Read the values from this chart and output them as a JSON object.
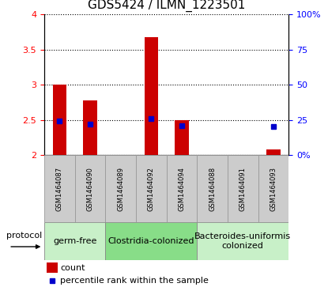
{
  "title": "GDS5424 / ILMN_1223501",
  "samples": [
    "GSM1464087",
    "GSM1464090",
    "GSM1464089",
    "GSM1464092",
    "GSM1464094",
    "GSM1464088",
    "GSM1464091",
    "GSM1464093"
  ],
  "count_values": [
    3.0,
    2.78,
    2.0,
    3.68,
    2.5,
    2.0,
    2.0,
    2.08
  ],
  "percentile_values": [
    24,
    22,
    null,
    26,
    21,
    null,
    null,
    20
  ],
  "groups": [
    {
      "label": "germ-free",
      "indices": [
        0,
        1
      ],
      "color": "#c8f0c8"
    },
    {
      "label": "Clostridia-colonized",
      "indices": [
        2,
        3,
        4
      ],
      "color": "#88dd88"
    },
    {
      "label": "Bacteroides-uniformis\ncolonized",
      "indices": [
        5,
        6,
        7
      ],
      "color": "#c8f0c8"
    }
  ],
  "ylim_left": [
    2.0,
    4.0
  ],
  "ylim_right": [
    0,
    100
  ],
  "yticks_left": [
    2.0,
    2.5,
    3.0,
    3.5,
    4.0
  ],
  "yticks_right": [
    0,
    25,
    50,
    75,
    100
  ],
  "ytick_labels_left": [
    "2",
    "2.5",
    "3",
    "3.5",
    "4"
  ],
  "ytick_labels_right": [
    "0%",
    "25",
    "50",
    "75",
    "100%"
  ],
  "bar_color": "#cc0000",
  "dot_color": "#0000cc",
  "bar_width": 0.45,
  "bar_bottom": 2.0,
  "legend_count_label": "count",
  "legend_percentile_label": "percentile rank within the sample",
  "protocol_label": "protocol",
  "sample_box_color": "#cccccc",
  "title_fontsize": 11,
  "tick_fontsize": 8,
  "sample_fontsize": 6,
  "group_fontsize": 8,
  "legend_fontsize": 8
}
